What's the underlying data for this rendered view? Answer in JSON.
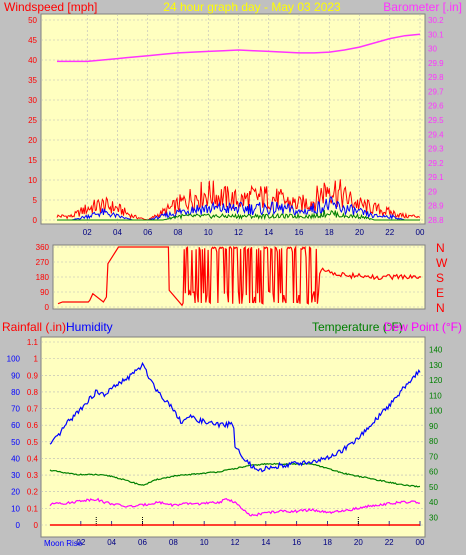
{
  "colors": {
    "background": "#c0c0c0",
    "plot_bg": "#ffffc0",
    "grid": "#b8b8b8",
    "wind_avg": "#0000ff",
    "wind_gust": "#ff0000",
    "wind_low": "#008000",
    "barometer": "#ff33ff",
    "humidity": "#0000ff",
    "temperature": "#008000",
    "dew_point": "#ff00ff",
    "rainfall": "#ff0000",
    "wind_dir": "#ff0000",
    "title": "#ffff00"
  },
  "chart_data": [
    {
      "panel": "top",
      "type": "line",
      "title": "24 hour graph day - May 03 2023",
      "ylabel_left": "Windspeed [mph]",
      "ylabel_right": "Barometer [.in]",
      "xlim": [
        0,
        24
      ],
      "x_tick_labels": [
        "02",
        "04",
        "06",
        "08",
        "10",
        "12",
        "14",
        "16",
        "18",
        "20",
        "22",
        "00"
      ],
      "y_left_ticks": [
        "0",
        "5",
        "10",
        "15",
        "20",
        "25",
        "30",
        "35",
        "40",
        "45",
        "50"
      ],
      "ylim_left": [
        0,
        50
      ],
      "y_right_ticks": [
        "28.8",
        "28.9",
        "29",
        "29.1",
        "29.2",
        "29.3",
        "29.4",
        "29.5",
        "29.6",
        "29.7",
        "29.8",
        "29.9",
        "30",
        "30.1",
        "30.2"
      ],
      "ylim_right": [
        28.8,
        30.2
      ],
      "series": [
        {
          "role": "barometer",
          "axis": "right",
          "x": [
            0,
            1,
            2,
            3,
            4,
            5,
            6,
            7,
            8,
            9,
            10,
            11,
            12,
            13,
            14,
            15,
            16,
            17,
            18,
            19,
            20,
            21,
            22,
            23,
            24
          ],
          "values": [
            29.91,
            29.91,
            29.91,
            29.92,
            29.93,
            29.94,
            29.95,
            29.96,
            29.97,
            29.975,
            29.98,
            29.985,
            29.99,
            29.985,
            29.98,
            29.975,
            29.97,
            29.97,
            29.975,
            29.99,
            30.01,
            30.04,
            30.07,
            30.09,
            30.1
          ]
        },
        {
          "role": "wind_gust",
          "axis": "left",
          "x": [
            0,
            1,
            2,
            3,
            4,
            5,
            6,
            7,
            8,
            9,
            10,
            11,
            12,
            13,
            14,
            15,
            16,
            17,
            18,
            19,
            20,
            21,
            22,
            23,
            24
          ],
          "values": [
            1,
            1,
            3,
            4,
            3,
            1,
            0,
            2,
            4,
            6,
            7,
            6,
            5,
            6,
            6,
            5,
            4,
            5,
            9,
            6,
            4,
            3,
            2,
            1,
            1
          ]
        },
        {
          "role": "wind_avg",
          "axis": "left",
          "x": [
            0,
            1,
            2,
            3,
            4,
            5,
            6,
            7,
            8,
            9,
            10,
            11,
            12,
            13,
            14,
            15,
            16,
            17,
            18,
            19,
            20,
            21,
            22,
            23,
            24
          ],
          "values": [
            0,
            0,
            1,
            2,
            1,
            0,
            0,
            1,
            2,
            3,
            3,
            3,
            3,
            3,
            3,
            3,
            2,
            3,
            4,
            3,
            2,
            1,
            1,
            0,
            0
          ]
        },
        {
          "role": "wind_low",
          "axis": "left",
          "x": [
            0,
            1,
            2,
            3,
            4,
            5,
            6,
            7,
            8,
            9,
            10,
            11,
            12,
            13,
            14,
            15,
            16,
            17,
            18,
            19,
            20,
            21,
            22,
            23,
            24
          ],
          "values": [
            0,
            0,
            0,
            0,
            0,
            0,
            0,
            0,
            1,
            1,
            1,
            1,
            1,
            1,
            1,
            1,
            1,
            1,
            2,
            1,
            1,
            0,
            0,
            0,
            0
          ]
        }
      ]
    },
    {
      "panel": "wind_direction",
      "type": "line",
      "xlim": [
        0,
        24
      ],
      "ylim": [
        0,
        360
      ],
      "y_ticks": [
        "0",
        "90",
        "180",
        "270",
        "360"
      ],
      "direction_labels": [
        "N",
        "W",
        "S",
        "E",
        "N"
      ],
      "series": [
        {
          "role": "wind_direction",
          "x": [
            0,
            0.3,
            2.0,
            2.1,
            2.3,
            3.0,
            3.2,
            3.3,
            4.0,
            4.1,
            6.2,
            6.3,
            7.3,
            7.35,
            8.2,
            9.0,
            9.4,
            10.0,
            10.5,
            11.0,
            11.4,
            12.0,
            12.6,
            13.0,
            13.4,
            14.0,
            14.5,
            15.0,
            15.5,
            16.0,
            16.4,
            17.0,
            17.3,
            17.4,
            18.0,
            19.0,
            20.0,
            21.0,
            21.5,
            22.0,
            23.0,
            24.0
          ],
          "values": [
            20,
            30,
            30,
            40,
            80,
            30,
            60,
            260,
            360,
            360,
            360,
            360,
            360,
            100,
            10,
            90,
            340,
            30,
            330,
            80,
            360,
            20,
            350,
            60,
            340,
            90,
            330,
            40,
            330,
            20,
            300,
            30,
            200,
            220,
            205,
            190,
            185,
            175,
            185,
            180,
            180,
            180
          ]
        }
      ]
    },
    {
      "panel": "bottom",
      "type": "line",
      "ylabel_left_1": "Rainfall (.in)",
      "ylabel_left_2": "Humidity",
      "ylabel_right_1": "Temperature (°F)",
      "ylabel_right_2": "Dew Point (°F)",
      "xlim": [
        0,
        24
      ],
      "x_tick_labels": [
        "02",
        "04",
        "06",
        "08",
        "10",
        "12",
        "14",
        "16",
        "18",
        "20",
        "22",
        "00"
      ],
      "moon_rise_label": "Moon Rise",
      "marker_hours": [
        3,
        6,
        20
      ],
      "y_rain_ticks": [
        "0",
        "0.1",
        "0.2",
        "0.3",
        "0.4",
        "0.5",
        "0.6",
        "0.7",
        "0.8",
        "0.9",
        "1",
        "1.1"
      ],
      "ylim_rain": [
        0,
        1.1
      ],
      "y_humidity_ticks": [
        "0",
        "10",
        "20",
        "30",
        "40",
        "50",
        "60",
        "70",
        "80",
        "90",
        "100"
      ],
      "ylim_humidity": [
        0,
        110
      ],
      "y_temp_ticks": [
        "30",
        "40",
        "50",
        "60",
        "70",
        "80",
        "90",
        "100",
        "110",
        "120",
        "130",
        "140"
      ],
      "ylim_temp": [
        25,
        145
      ],
      "series": [
        {
          "role": "humidity",
          "axis": "humidity",
          "x": [
            0,
            0.5,
            1,
            2,
            3,
            3.5,
            4,
            5,
            5.5,
            6,
            6.5,
            7,
            8,
            8.5,
            9,
            10,
            11,
            11.9,
            12,
            12.5,
            13,
            13.5,
            14,
            15,
            16,
            17,
            18,
            19,
            20,
            21,
            22,
            23,
            24
          ],
          "values": [
            48,
            53,
            60,
            70,
            80,
            78,
            82,
            88,
            92,
            96,
            88,
            80,
            70,
            62,
            65,
            62,
            60,
            61,
            48,
            40,
            36,
            32,
            34,
            36,
            37,
            38,
            40,
            45,
            52,
            62,
            72,
            83,
            93
          ]
        },
        {
          "role": "temperature",
          "axis": "temp",
          "x": [
            0,
            1,
            2,
            3,
            4,
            5,
            6,
            7,
            8,
            9,
            10,
            11,
            12,
            13,
            14,
            15,
            16,
            17,
            18,
            19,
            20,
            21,
            22,
            23,
            24
          ],
          "values": [
            61,
            59,
            58,
            58,
            57,
            54,
            51,
            55,
            57,
            58,
            59,
            60,
            62,
            64,
            65,
            65,
            65,
            65,
            62,
            59,
            57,
            55,
            53,
            51,
            50
          ]
        },
        {
          "role": "dew_point",
          "axis": "temp",
          "x": [
            0,
            0.5,
            1,
            2,
            3,
            3.5,
            4,
            5,
            6,
            7,
            8,
            9,
            10,
            11,
            11.5,
            12,
            12.5,
            13,
            14,
            15,
            16,
            17,
            18,
            19,
            20,
            21,
            22,
            23,
            24
          ],
          "values": [
            38,
            40,
            39,
            41,
            42,
            40,
            39,
            37,
            38,
            40,
            38,
            39,
            39,
            40,
            42,
            40,
            35,
            31,
            33,
            34,
            34,
            35,
            33,
            34,
            36,
            38,
            39,
            40,
            40
          ]
        },
        {
          "role": "rainfall",
          "axis": "rain",
          "x": [
            0,
            24
          ],
          "values": [
            0,
            0
          ]
        }
      ]
    }
  ]
}
